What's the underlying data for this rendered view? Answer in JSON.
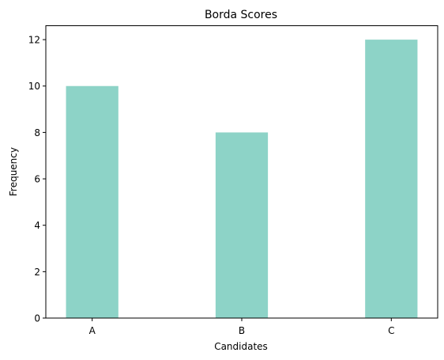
{
  "chart_data": {
    "type": "bar",
    "title": "Borda Scores",
    "xlabel": "Candidates",
    "ylabel": "Frequency",
    "categories": [
      "A",
      "B",
      "C"
    ],
    "values": [
      10,
      8,
      12
    ],
    "ylim": [
      0,
      12.6
    ],
    "yticks": [
      0,
      2,
      4,
      6,
      8,
      10,
      12
    ],
    "grid": false,
    "bar_color": "#8dd3c7"
  }
}
